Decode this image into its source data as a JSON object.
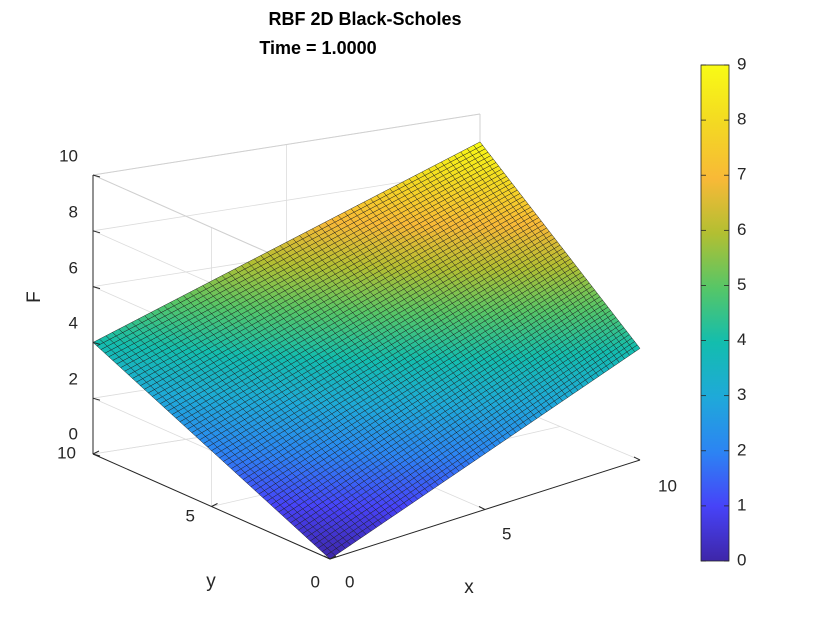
{
  "chart_data": {
    "type": "surface",
    "title": "RBF 2D Black-Scholes",
    "subtitle": "Time = 1.0000",
    "xlabel": "x",
    "ylabel": "y",
    "zlabel": "F",
    "xlim": [
      0,
      10
    ],
    "ylim": [
      0,
      10
    ],
    "zlim": [
      0,
      10
    ],
    "x_ticks": [
      "0",
      "5",
      "10"
    ],
    "y_ticks": [
      "0",
      "5",
      "10"
    ],
    "z_ticks": [
      "0",
      "2",
      "4",
      "6",
      "8",
      "10"
    ],
    "colorbar": {
      "range": [
        0,
        9
      ],
      "ticks": [
        "0",
        "1",
        "2",
        "3",
        "4",
        "5",
        "6",
        "7",
        "8",
        "9"
      ],
      "colormap": "parula",
      "placement": "right"
    },
    "grid": true,
    "mesh_size": 60,
    "surface_corners": [
      {
        "x": 0,
        "y": 0,
        "F": 0
      },
      {
        "x": 10,
        "y": 0,
        "F": 4
      },
      {
        "x": 0,
        "y": 10,
        "F": 4
      },
      {
        "x": 10,
        "y": 10,
        "F": 9
      }
    ],
    "colors": {
      "parula": [
        "#3e26a8",
        "#4743f8",
        "#2c84f3",
        "#1fa9d9",
        "#13bdae",
        "#56c667",
        "#b2bf32",
        "#f8b937",
        "#f3d823",
        "#f9fb15"
      ]
    }
  }
}
